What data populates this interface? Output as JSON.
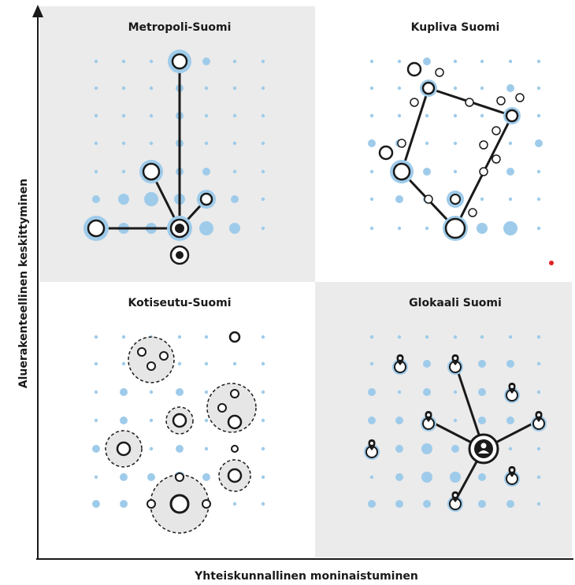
{
  "quadrants": {
    "top_left": {
      "title": "Metropoli-Suomi"
    },
    "top_right": {
      "title": "Kupliva Suomi"
    },
    "bottom_left": {
      "title": "Kotiseutu-Suomi"
    },
    "bottom_right": {
      "title": "Glokaali Suomi"
    }
  },
  "axes": {
    "x_label": "Yhteiskunnallinen moninaistuminen",
    "y_label": "Aluerakenteellinen keskittyminen"
  },
  "colors": {
    "panel_shade": "#ebebeb",
    "dot_blue": "#9fcbea",
    "stroke": "#1a1a1a",
    "accent_red": "#e02020"
  }
}
